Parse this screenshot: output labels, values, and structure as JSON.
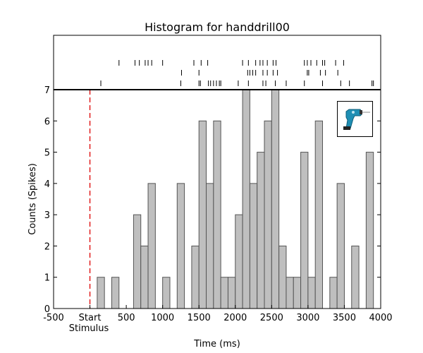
{
  "chart_data": {
    "type": "bar",
    "title": "Histogram for handdrill00",
    "xlabel": "Time (ms)",
    "ylabel": "Counts (Spikes)",
    "xlim": [
      -500,
      4000
    ],
    "ylim": [
      0,
      7
    ],
    "grid": false,
    "x_ticks": [
      -500,
      0,
      500,
      1000,
      1500,
      2000,
      2500,
      3000,
      3500,
      4000
    ],
    "x_tick_labels": [
      "-500",
      "Start",
      "500",
      "1000",
      "1500",
      "2000",
      "2500",
      "3000",
      "3500",
      "4000"
    ],
    "y_ticks": [
      0,
      1,
      2,
      3,
      4,
      5,
      6,
      7
    ],
    "stimulus_label": "Stimulus",
    "stimulus_time": 0,
    "stimulus_color": "#dd0000",
    "bar_color": "#bfbfbf",
    "edge_color": "#555555",
    "bin_width": 100,
    "bin_starts": [
      100,
      200,
      300,
      400,
      500,
      600,
      700,
      800,
      900,
      1000,
      1100,
      1200,
      1300,
      1400,
      1500,
      1600,
      1700,
      1800,
      1900,
      2000,
      2100,
      2200,
      2300,
      2400,
      2500,
      2600,
      2700,
      2800,
      2900,
      3000,
      3100,
      3200,
      3300,
      3400,
      3500,
      3600,
      3700,
      3800,
      3900
    ],
    "values": [
      1,
      0,
      1,
      0,
      0,
      3,
      2,
      4,
      0,
      1,
      0,
      4,
      0,
      2,
      6,
      4,
      6,
      1,
      1,
      3,
      7,
      4,
      5,
      6,
      7,
      2,
      1,
      1,
      5,
      1,
      6,
      0,
      1,
      4,
      0,
      2,
      0,
      5,
      0
    ],
    "raster_trials": [
      [
        400,
        620,
        680,
        760,
        800,
        850,
        1000,
        1430,
        1530,
        1620,
        2100,
        2180,
        2280,
        2340,
        2380,
        2440,
        2520,
        2560,
        2950,
        2990,
        3040,
        3120,
        3200,
        3230,
        3380,
        3490
      ],
      [
        1260,
        1500,
        2170,
        2200,
        2240,
        2280,
        2380,
        2440,
        2520,
        2580,
        2990,
        3010,
        3170,
        3240,
        3410
      ],
      [
        150,
        1250,
        1500,
        1520,
        1630,
        1660,
        1700,
        1740,
        1780,
        1800,
        2040,
        2180,
        2380,
        2420,
        2550,
        2700,
        2950,
        3200,
        3450,
        3570,
        3880,
        3900
      ]
    ],
    "inset_icon": "hand-drill-icon",
    "inset_icon_color": "#1f8fb4"
  }
}
